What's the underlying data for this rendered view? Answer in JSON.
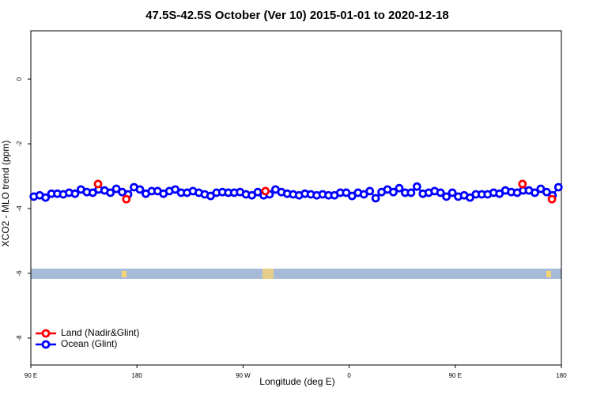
{
  "chart_data": {
    "type": "scatter",
    "title": "47.5S-42.5S October (Ver 10)   2015-01-01 to 2020-12-18",
    "x_label": "Longitude (deg E)",
    "y_label": "XCO2 - MLO trend (ppm)",
    "xlim": [
      90,
      540
    ],
    "ylim": [
      -8.83,
      1.49
    ],
    "xticks": [
      {
        "value": 90,
        "label": "90 E"
      },
      180,
      {
        "value": 270,
        "label": "90 W"
      },
      {
        "value": 360,
        "label": "0"
      },
      {
        "value": 450,
        "label": "90 E"
      },
      {
        "value": 540,
        "label": "180"
      }
    ],
    "yticks": [
      0,
      -2,
      -4,
      -6,
      -8
    ],
    "legend": "bottom-left",
    "series": [
      {
        "name": "Land (Nadir&Glint)",
        "color": "#ff0000",
        "x": [
          147,
          171,
          289,
          507,
          532
        ],
        "values": [
          -3.24,
          -3.71,
          -3.46,
          -3.24,
          -3.71
        ]
      },
      {
        "name": "Ocean (Glint)",
        "color": "#0000ff",
        "x": [
          92.5,
          97.5,
          102.5,
          107.5,
          112.5,
          117.5,
          122.5,
          127.5,
          132.5,
          137.5,
          142.5,
          147.5,
          152.5,
          157.5,
          162.5,
          167.5,
          172.5,
          177.5,
          182.5,
          187.5,
          192.5,
          197.5,
          202.5,
          207.5,
          212.5,
          217.5,
          222.5,
          227.5,
          232.5,
          237.5,
          242.5,
          247.5,
          252.5,
          257.5,
          262.5,
          267.5,
          272.5,
          277.5,
          282.5,
          287.5,
          292.5,
          297.5,
          302.5,
          307.5,
          312.5,
          317.5,
          322.5,
          327.5,
          332.5,
          337.5,
          342.5,
          347.5,
          352.5,
          357.5,
          362.5,
          367.5,
          372.5,
          377.5,
          382.5,
          387.5,
          392.5,
          397.5,
          402.5,
          407.5,
          412.5,
          417.5,
          422.5,
          427.5,
          432.5,
          437.5,
          442.5,
          447.5,
          452.5,
          457.5,
          462.5,
          467.5,
          472.5,
          477.5,
          482.5,
          487.5,
          492.5,
          497.5,
          502.5,
          507.5,
          512.5,
          517.5,
          522.5,
          527.5,
          532.5,
          537.5
        ],
        "values": [
          -3.63,
          -3.59,
          -3.66,
          -3.54,
          -3.54,
          -3.56,
          -3.51,
          -3.54,
          -3.41,
          -3.49,
          -3.51,
          -3.41,
          -3.44,
          -3.51,
          -3.39,
          -3.49,
          -3.56,
          -3.34,
          -3.41,
          -3.54,
          -3.46,
          -3.46,
          -3.54,
          -3.46,
          -3.41,
          -3.51,
          -3.51,
          -3.46,
          -3.51,
          -3.56,
          -3.61,
          -3.51,
          -3.49,
          -3.51,
          -3.51,
          -3.49,
          -3.56,
          -3.59,
          -3.49,
          -3.59,
          -3.56,
          -3.41,
          -3.49,
          -3.54,
          -3.56,
          -3.59,
          -3.54,
          -3.56,
          -3.59,
          -3.56,
          -3.59,
          -3.59,
          -3.51,
          -3.51,
          -3.61,
          -3.51,
          -3.56,
          -3.46,
          -3.68,
          -3.49,
          -3.41,
          -3.49,
          -3.37,
          -3.51,
          -3.51,
          -3.32,
          -3.54,
          -3.51,
          -3.46,
          -3.51,
          -3.63,
          -3.51,
          -3.63,
          -3.59,
          -3.66,
          -3.56,
          -3.56,
          -3.56,
          -3.51,
          -3.54,
          -3.44,
          -3.49,
          -3.51,
          -3.44,
          -3.44,
          -3.51,
          -3.39,
          -3.49,
          -3.59,
          -3.34
        ]
      }
    ]
  }
}
